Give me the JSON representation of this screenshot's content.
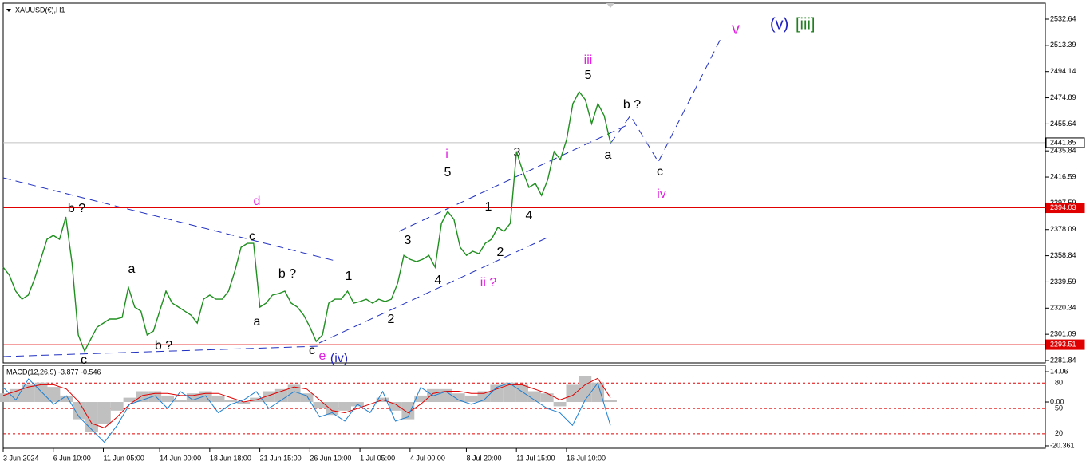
{
  "chart_data": [
    {
      "type": "line",
      "title": "XAUUSD(€),H1",
      "color": "#1f8f1f",
      "values": [
        2350.4,
        2344.5,
        2332.8,
        2326.9,
        2329.9,
        2341.6,
        2356.2,
        2370.9,
        2373.8,
        2370.9,
        2387.3,
        2353.3,
        2300.6,
        2288.8,
        2297.6,
        2306.4,
        2309.3,
        2312.3,
        2312.3,
        2313.4,
        2335.7,
        2321.1,
        2318.1,
        2300.6,
        2303.5,
        2318.1,
        2332.8,
        2324.0,
        2321.1,
        2318.1,
        2315.2,
        2309.3,
        2326.9,
        2329.9,
        2326.9,
        2326.9,
        2332.8,
        2347.4,
        2365.0,
        2367.9,
        2367.9,
        2321.1,
        2324.0,
        2329.9,
        2331.0,
        2332.8,
        2324.0,
        2321.1,
        2315.2,
        2306.4,
        2295.9,
        2300.6,
        2324.0,
        2326.9,
        2326.9,
        2332.8,
        2324.0,
        2325.2,
        2326.9,
        2324.0,
        2326.9,
        2325.2,
        2326.9,
        2338.6,
        2359.1,
        2356.2,
        2354.5,
        2356.2,
        2359.1,
        2350.4,
        2382.6,
        2391.4,
        2385.5,
        2365.0,
        2359.1,
        2362.1,
        2360.3,
        2367.9,
        2370.9,
        2379.7,
        2376.7,
        2382.6,
        2435.3,
        2420.7,
        2409.0,
        2411.9,
        2403.1,
        2414.8,
        2435.3,
        2429.5,
        2444.1,
        2470.5,
        2479.3,
        2473.4,
        2455.8,
        2470.5,
        2461.7,
        2441.85
      ],
      "xlim": [
        0,
        166.5
      ],
      "xticks": [
        {
          "value": 0,
          "label": "3 Jun 2024"
        },
        {
          "value": 8,
          "label": "6 Jun 10:00"
        },
        {
          "value": 16,
          "label": "11 Jun 05:00"
        },
        {
          "value": 25,
          "label": "14 Jun 00:00"
        },
        {
          "value": 33,
          "label": "18 Jun 18:00"
        },
        {
          "value": 41,
          "label": "21 Jun 15:00"
        },
        {
          "value": 49,
          "label": "26 Jun 10:00"
        },
        {
          "value": 57,
          "label": "1 Jul 05:00"
        },
        {
          "value": 65,
          "label": "4 Jul 00:00"
        },
        {
          "value": 74,
          "label": "8 Jul 20:00"
        },
        {
          "value": 82,
          "label": "11 Jul 15:00"
        },
        {
          "value": 90,
          "label": "16 Jul 10:00"
        }
      ],
      "ylim": [
        2280.08,
        2544.36
      ],
      "yticks": [
        2532.64,
        2513.39,
        2494.14,
        2474.89,
        2455.64,
        2435.84,
        2416.59,
        2397.59,
        2378.09,
        2358.84,
        2339.59,
        2320.34,
        2301.09,
        2281.84
      ],
      "levels": [
        {
          "value": 2441.85,
          "color": "#c0c0c0"
        },
        {
          "value": 2394.03,
          "color": "#e00000"
        },
        {
          "value": 2293.51,
          "color": "#e00000"
        }
      ],
      "annotations": [
        {
          "text": "b ?",
          "color": "#000000"
        },
        {
          "text": "c",
          "color": "#000000"
        },
        {
          "text": "a",
          "color": "#000000"
        },
        {
          "text": "b ?",
          "color": "#000000"
        },
        {
          "text": "d",
          "color": "#e020e0"
        },
        {
          "text": "c",
          "color": "#000000"
        },
        {
          "text": "a",
          "color": "#000000"
        },
        {
          "text": "b ?",
          "color": "#000000"
        },
        {
          "text": "1",
          "color": "#000000"
        },
        {
          "text": "c",
          "color": "#000000"
        },
        {
          "text": "e",
          "color": "#e020e0"
        },
        {
          "text": "(iv)",
          "color": "#2020c0"
        },
        {
          "text": "2",
          "color": "#000000"
        },
        {
          "text": "3",
          "color": "#000000"
        },
        {
          "text": "4",
          "color": "#000000"
        },
        {
          "text": "i",
          "color": "#e020e0"
        },
        {
          "text": "5",
          "color": "#000000"
        },
        {
          "text": "1",
          "color": "#000000"
        },
        {
          "text": "2",
          "color": "#000000"
        },
        {
          "text": "ii ?",
          "color": "#e020e0"
        },
        {
          "text": "4",
          "color": "#000000"
        },
        {
          "text": "3",
          "color": "#000000"
        },
        {
          "text": "iii",
          "color": "#e020e0"
        },
        {
          "text": "5",
          "color": "#000000"
        },
        {
          "text": "b ?",
          "color": "#000000"
        },
        {
          "text": "a",
          "color": "#000000"
        },
        {
          "text": "c",
          "color": "#000000"
        },
        {
          "text": "iv",
          "color": "#e020e0"
        },
        {
          "text": "v",
          "color": "#e020e0"
        },
        {
          "text": "(v)",
          "color": "#2020c0"
        },
        {
          "text": "[iii]",
          "color": "#208020"
        }
      ]
    },
    {
      "type": "macd",
      "title": "MACD(12,26,9) -3.877 -0.546",
      "ylim": [
        -21.48,
        17.05
      ],
      "yticks": [
        14.06,
        {
          "value": 0,
          "label": "0.00"
        },
        -20.361
      ],
      "y2lim": [
        2.9,
        101
      ],
      "y2ticks": [
        80,
        50,
        20
      ],
      "series": [
        {
          "color": "#c0c0c0",
          "values": [
            4,
            6,
            8,
            9,
            7,
            3,
            -8,
            -14,
            -10,
            -4,
            2,
            5,
            5,
            3,
            1,
            4,
            5,
            3,
            1,
            -1,
            2,
            5,
            6,
            8,
            4,
            -3,
            -6,
            -4,
            -2,
            0,
            2,
            -4,
            -8,
            3,
            6,
            6,
            4,
            3,
            5,
            8,
            9,
            8,
            5,
            4,
            -2,
            8,
            12,
            9,
            1
          ]
        },
        {
          "color": "#e00000",
          "values": [
            3,
            5,
            7,
            8,
            8,
            6,
            0,
            -10,
            -12,
            -7,
            -1,
            3,
            4,
            4,
            3,
            3,
            4,
            4,
            2,
            0,
            1,
            3,
            5,
            7,
            6,
            1,
            -4,
            -5,
            -3,
            -1,
            1,
            -1,
            -5,
            -1,
            4,
            5,
            5,
            4,
            4,
            6,
            8,
            8,
            6,
            4,
            1,
            3,
            8,
            11,
            2
          ]
        },
        {
          "color": "#1e7fd0",
          "axis": "y2",
          "values": [
            75,
            60,
            85,
            70,
            55,
            65,
            40,
            25,
            10,
            30,
            55,
            60,
            65,
            50,
            70,
            60,
            65,
            45,
            55,
            60,
            70,
            50,
            60,
            70,
            65,
            40,
            45,
            35,
            55,
            45,
            70,
            35,
            40,
            75,
            65,
            70,
            60,
            55,
            60,
            75,
            80,
            70,
            60,
            50,
            45,
            30,
            60,
            80,
            30
          ]
        }
      ]
    }
  ]
}
